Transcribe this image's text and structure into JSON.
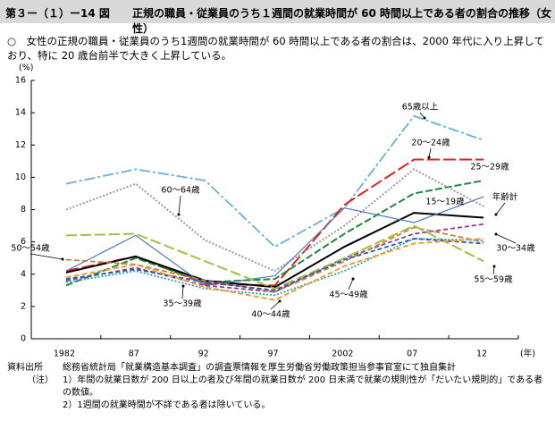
{
  "header": {
    "figure": "第３ー（１）ー14 図",
    "title": "正規の職員・従業員のうち１週間の就業時間が 60 時間以上である者の割合の推移（女性）"
  },
  "summary": "○　女性の正規の職員・従業員のうち1週間の就業時間が 60 時間以上である者の割合は、2000 年代に入り上昇しており、特に 20 歳台前半で大きく上昇している。",
  "notes": {
    "source_label": "資料出所",
    "source": "総務省統計局「就業構造基本調査」の調査票情報を厚生労働省労働政策担当参事官室にて独自集計",
    "note_label": "（注）",
    "items": [
      "1）年間の就業日数が 200 日以上の者及び年間の就業日数が 200 日未満で就業の規則性が「だいたい規則的」である者の数値。",
      "2）1週間の就業時間が不詳である者は除いている。"
    ]
  },
  "chart_data": {
    "type": "line",
    "y_unit": "(%)",
    "x_unit": "(年)",
    "categories": [
      "1982",
      "87",
      "92",
      "97",
      "2002",
      "07",
      "12"
    ],
    "ylim": [
      0,
      16
    ],
    "yticks": [
      0,
      2,
      4,
      6,
      8,
      10,
      12,
      14,
      16
    ],
    "series": [
      {
        "name": "65歳以上",
        "color": "#6aaedc",
        "values": [
          9.6,
          10.5,
          9.8,
          5.7,
          8.1,
          13.8,
          12.3
        ]
      },
      {
        "name": "20～24歳",
        "color": "#e02020",
        "values": [
          4.2,
          5.1,
          3.4,
          3.3,
          8.3,
          11.1,
          11.1
        ]
      },
      {
        "name": "25～29歳",
        "color": "#1a8a3c",
        "values": [
          3.3,
          5.0,
          3.5,
          3.7,
          6.5,
          9.0,
          9.8
        ]
      },
      {
        "name": "60～64歳",
        "color": "#9a9a9a",
        "values": [
          8.0,
          9.6,
          6.1,
          4.2,
          7.0,
          10.5,
          8.2
        ]
      },
      {
        "name": "年齢計",
        "color": "#000000",
        "values": [
          4.1,
          5.1,
          3.6,
          3.2,
          5.7,
          7.8,
          7.5
        ]
      },
      {
        "name": "15～19歳",
        "color": "#4a7ac0",
        "values": [
          4.2,
          6.4,
          3.3,
          3.9,
          8.1,
          7.2,
          8.8
        ]
      },
      {
        "name": "30～34歳",
        "color": "#8a3a9a",
        "values": [
          3.6,
          4.4,
          3.3,
          2.9,
          5.0,
          6.5,
          7.1
        ]
      },
      {
        "name": "50～54歳",
        "color": "#c08040",
        "values": [
          4.9,
          4.6,
          3.6,
          2.9,
          4.8,
          6.9,
          6.0
        ]
      },
      {
        "name": "55～59歳",
        "color": "#a0c040",
        "values": [
          6.4,
          6.5,
          4.8,
          3.1,
          5.0,
          7.0,
          4.8
        ]
      },
      {
        "name": "45～49歳",
        "color": "#20a0d0",
        "values": [
          3.5,
          4.2,
          3.1,
          2.7,
          4.2,
          6.2,
          6.1
        ]
      },
      {
        "name": "35～39歳",
        "color": "#2a5aa8",
        "values": [
          3.7,
          4.3,
          3.5,
          3.0,
          4.9,
          6.2,
          5.9
        ]
      },
      {
        "name": "40～44歳",
        "color": "#f0a030",
        "values": [
          3.8,
          4.6,
          3.2,
          2.4,
          4.5,
          5.9,
          6.2
        ]
      }
    ]
  }
}
